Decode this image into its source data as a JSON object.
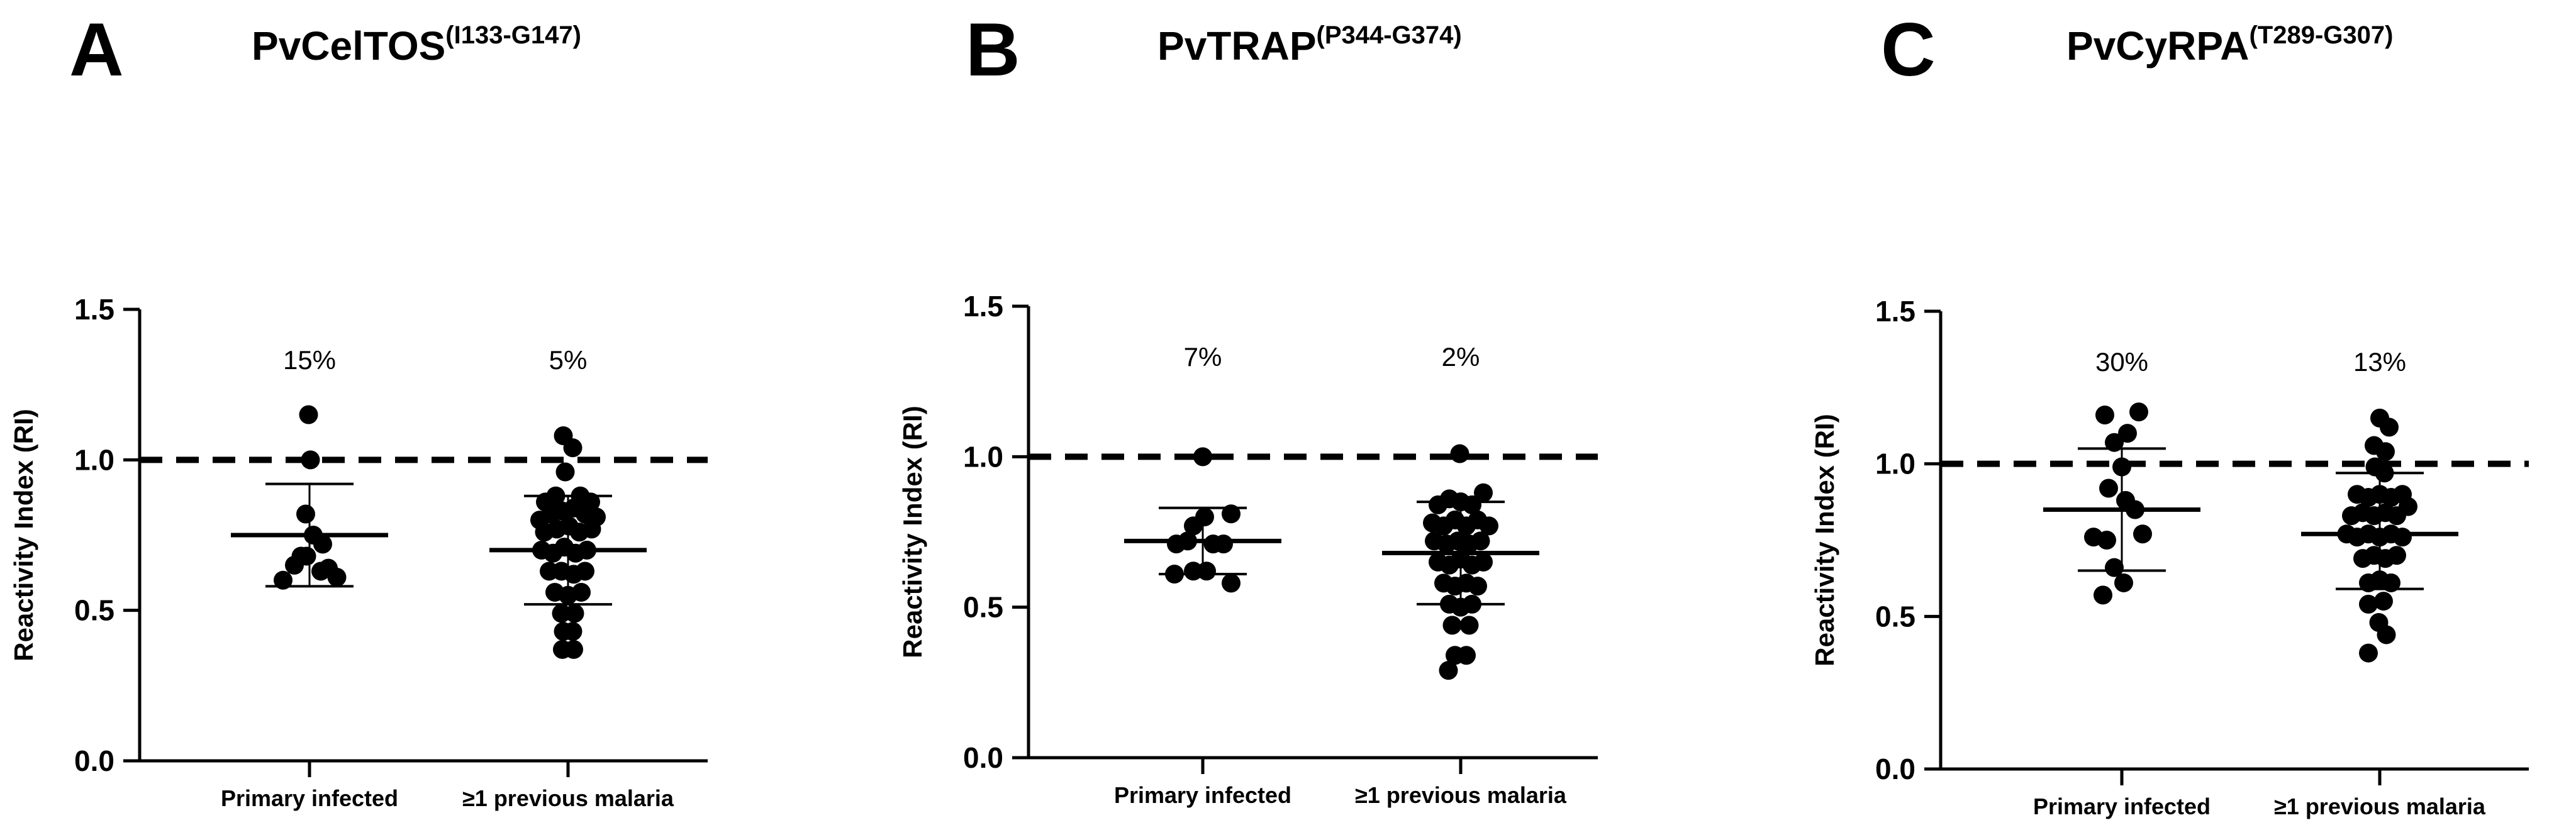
{
  "figure": {
    "panels": [
      {
        "letter": "A",
        "title": "PvCelTOS",
        "title_sup": "(I133-G147)"
      },
      {
        "letter": "B",
        "title": "PvTRAP",
        "title_sup": "(P344-G374)"
      },
      {
        "letter": "C",
        "title": "PvCyRPA",
        "title_sup": "(T289-G307)"
      }
    ]
  },
  "chart_data": [
    {
      "type": "scatter",
      "title": "PvCelTOS(I133-G147)",
      "ylabel": "Reactivity Index (RI)",
      "ylim": [
        0,
        1.5
      ],
      "yticks": [
        0.0,
        0.5,
        1.0,
        1.5
      ],
      "ytick_labels": [
        "0.0",
        "0.5",
        "1.0",
        "1.5"
      ],
      "cutoff": 1.0,
      "categories": [
        "Primary infected",
        "≥1 previous malaria"
      ],
      "percent_labels": [
        "15%",
        "5%"
      ],
      "groups": [
        {
          "name": "Primary infected",
          "mean": 0.75,
          "sd_low": 0.58,
          "sd_high": 0.92,
          "points": [
            {
              "x": -0.28,
              "y": 0.6
            },
            {
              "x": -0.16,
              "y": 0.65
            },
            {
              "x": -0.03,
              "y": 0.68
            },
            {
              "x": 0.12,
              "y": 0.63
            },
            {
              "x": 0.29,
              "y": 0.61
            },
            {
              "x": 0.04,
              "y": 0.75
            },
            {
              "x": 0.14,
              "y": 0.72
            },
            {
              "x": -0.04,
              "y": 0.82
            },
            {
              "x": 0.01,
              "y": 1.0
            },
            {
              "x": -0.01,
              "y": 1.15
            },
            {
              "x": -0.09,
              "y": 0.68
            },
            {
              "x": 0.2,
              "y": 0.64
            }
          ]
        },
        {
          "name": "≥1 previous malaria",
          "mean": 0.7,
          "sd_low": 0.52,
          "sd_high": 0.88,
          "points": [
            {
              "x": -0.05,
              "y": 1.08
            },
            {
              "x": 0.05,
              "y": 1.04
            },
            {
              "x": -0.03,
              "y": 0.96
            },
            {
              "x": -0.13,
              "y": 0.88
            },
            {
              "x": 0.13,
              "y": 0.88
            },
            {
              "x": -0.24,
              "y": 0.86
            },
            {
              "x": 0.24,
              "y": 0.86
            },
            {
              "x": -0.3,
              "y": 0.8
            },
            {
              "x": -0.18,
              "y": 0.82
            },
            {
              "x": -0.06,
              "y": 0.83
            },
            {
              "x": 0.06,
              "y": 0.84
            },
            {
              "x": 0.18,
              "y": 0.82
            },
            {
              "x": 0.3,
              "y": 0.81
            },
            {
              "x": -0.25,
              "y": 0.76
            },
            {
              "x": -0.12,
              "y": 0.77
            },
            {
              "x": 0.01,
              "y": 0.78
            },
            {
              "x": 0.12,
              "y": 0.76
            },
            {
              "x": 0.25,
              "y": 0.77
            },
            {
              "x": -0.28,
              "y": 0.7
            },
            {
              "x": -0.16,
              "y": 0.69
            },
            {
              "x": -0.04,
              "y": 0.71
            },
            {
              "x": 0.08,
              "y": 0.69
            },
            {
              "x": 0.2,
              "y": 0.7
            },
            {
              "x": -0.2,
              "y": 0.63
            },
            {
              "x": -0.07,
              "y": 0.63
            },
            {
              "x": 0.06,
              "y": 0.62
            },
            {
              "x": 0.18,
              "y": 0.63
            },
            {
              "x": -0.14,
              "y": 0.56
            },
            {
              "x": 0.0,
              "y": 0.55
            },
            {
              "x": 0.14,
              "y": 0.56
            },
            {
              "x": -0.07,
              "y": 0.49
            },
            {
              "x": 0.07,
              "y": 0.49
            },
            {
              "x": -0.05,
              "y": 0.43
            },
            {
              "x": 0.05,
              "y": 0.43
            },
            {
              "x": -0.06,
              "y": 0.37
            },
            {
              "x": 0.06,
              "y": 0.37
            }
          ]
        }
      ]
    },
    {
      "type": "scatter",
      "title": "PvTRAP(P344-G374)",
      "ylabel": "Reactivity Index (RI)",
      "ylim": [
        0,
        1.5
      ],
      "yticks": [
        0.0,
        0.5,
        1.0,
        1.5
      ],
      "ytick_labels": [
        "0.0",
        "0.5",
        "1.0",
        "1.5"
      ],
      "cutoff": 1.0,
      "categories": [
        "Primary infected",
        "≥1 previous malaria"
      ],
      "percent_labels": [
        "7%",
        "2%"
      ],
      "groups": [
        {
          "name": "Primary infected",
          "mean": 0.72,
          "sd_low": 0.61,
          "sd_high": 0.83,
          "points": [
            {
              "x": 0.0,
              "y": 1.0
            },
            {
              "x": -0.1,
              "y": 0.77
            },
            {
              "x": 0.02,
              "y": 0.8
            },
            {
              "x": 0.3,
              "y": 0.81
            },
            {
              "x": -0.28,
              "y": 0.71
            },
            {
              "x": -0.16,
              "y": 0.72
            },
            {
              "x": 0.11,
              "y": 0.71
            },
            {
              "x": 0.22,
              "y": 0.71
            },
            {
              "x": -0.3,
              "y": 0.61
            },
            {
              "x": -0.1,
              "y": 0.62
            },
            {
              "x": 0.04,
              "y": 0.62
            },
            {
              "x": 0.3,
              "y": 0.58
            }
          ]
        },
        {
          "name": "≥1 previous malaria",
          "mean": 0.68,
          "sd_low": 0.51,
          "sd_high": 0.85,
          "points": [
            {
              "x": -0.01,
              "y": 1.01
            },
            {
              "x": -0.24,
              "y": 0.84
            },
            {
              "x": -0.12,
              "y": 0.86
            },
            {
              "x": 0.0,
              "y": 0.85
            },
            {
              "x": 0.12,
              "y": 0.84
            },
            {
              "x": 0.24,
              "y": 0.88
            },
            {
              "x": -0.3,
              "y": 0.78
            },
            {
              "x": -0.18,
              "y": 0.77
            },
            {
              "x": -0.06,
              "y": 0.79
            },
            {
              "x": 0.06,
              "y": 0.77
            },
            {
              "x": 0.18,
              "y": 0.79
            },
            {
              "x": 0.3,
              "y": 0.77
            },
            {
              "x": -0.28,
              "y": 0.72
            },
            {
              "x": -0.15,
              "y": 0.71
            },
            {
              "x": -0.03,
              "y": 0.72
            },
            {
              "x": 0.09,
              "y": 0.71
            },
            {
              "x": 0.21,
              "y": 0.72
            },
            {
              "x": -0.24,
              "y": 0.65
            },
            {
              "x": -0.12,
              "y": 0.64
            },
            {
              "x": 0.0,
              "y": 0.66
            },
            {
              "x": 0.12,
              "y": 0.64
            },
            {
              "x": 0.24,
              "y": 0.65
            },
            {
              "x": -0.18,
              "y": 0.58
            },
            {
              "x": -0.06,
              "y": 0.57
            },
            {
              "x": 0.06,
              "y": 0.58
            },
            {
              "x": 0.18,
              "y": 0.57
            },
            {
              "x": -0.12,
              "y": 0.51
            },
            {
              "x": 0.0,
              "y": 0.5
            },
            {
              "x": 0.12,
              "y": 0.51
            },
            {
              "x": -0.09,
              "y": 0.44
            },
            {
              "x": 0.09,
              "y": 0.44
            },
            {
              "x": -0.06,
              "y": 0.34
            },
            {
              "x": 0.06,
              "y": 0.34
            },
            {
              "x": -0.13,
              "y": 0.29
            }
          ]
        }
      ]
    },
    {
      "type": "scatter",
      "title": "PvCyRPA(T289-G307)",
      "ylabel": "Reactivity Index (RI)",
      "ylim": [
        0,
        1.5
      ],
      "yticks": [
        0.0,
        0.5,
        1.0,
        1.5
      ],
      "ytick_labels": [
        "0.0",
        "0.5",
        "1.0",
        "1.5"
      ],
      "cutoff": 1.0,
      "categories": [
        "Primary infected",
        "≥1 previous malaria"
      ],
      "percent_labels": [
        "30%",
        "13%"
      ],
      "groups": [
        {
          "name": "Primary infected",
          "mean": 0.85,
          "sd_low": 0.65,
          "sd_high": 1.05,
          "points": [
            {
              "x": -0.18,
              "y": 1.16
            },
            {
              "x": 0.18,
              "y": 1.17
            },
            {
              "x": -0.08,
              "y": 1.07
            },
            {
              "x": 0.06,
              "y": 1.1
            },
            {
              "x": 0.0,
              "y": 0.99
            },
            {
              "x": -0.14,
              "y": 0.92
            },
            {
              "x": 0.04,
              "y": 0.88
            },
            {
              "x": 0.14,
              "y": 0.85
            },
            {
              "x": -0.3,
              "y": 0.76
            },
            {
              "x": -0.16,
              "y": 0.75
            },
            {
              "x": 0.22,
              "y": 0.77
            },
            {
              "x": -0.08,
              "y": 0.66
            },
            {
              "x": -0.2,
              "y": 0.57
            },
            {
              "x": 0.02,
              "y": 0.61
            }
          ]
        },
        {
          "name": "≥1 previous malaria",
          "mean": 0.77,
          "sd_low": 0.59,
          "sd_high": 0.97,
          "points": [
            {
              "x": 0.0,
              "y": 1.15
            },
            {
              "x": 0.1,
              "y": 1.12
            },
            {
              "x": -0.06,
              "y": 1.06
            },
            {
              "x": 0.06,
              "y": 1.04
            },
            {
              "x": -0.05,
              "y": 0.99
            },
            {
              "x": 0.05,
              "y": 0.97
            },
            {
              "x": -0.24,
              "y": 0.9
            },
            {
              "x": -0.12,
              "y": 0.89
            },
            {
              "x": 0.0,
              "y": 0.9
            },
            {
              "x": 0.12,
              "y": 0.89
            },
            {
              "x": 0.24,
              "y": 0.9
            },
            {
              "x": -0.3,
              "y": 0.83
            },
            {
              "x": -0.18,
              "y": 0.84
            },
            {
              "x": -0.06,
              "y": 0.83
            },
            {
              "x": 0.06,
              "y": 0.84
            },
            {
              "x": 0.18,
              "y": 0.83
            },
            {
              "x": 0.3,
              "y": 0.86
            },
            {
              "x": -0.35,
              "y": 0.77
            },
            {
              "x": -0.24,
              "y": 0.76
            },
            {
              "x": -0.12,
              "y": 0.77
            },
            {
              "x": 0.0,
              "y": 0.76
            },
            {
              "x": 0.12,
              "y": 0.77
            },
            {
              "x": 0.24,
              "y": 0.76
            },
            {
              "x": -0.18,
              "y": 0.69
            },
            {
              "x": -0.06,
              "y": 0.7
            },
            {
              "x": 0.06,
              "y": 0.69
            },
            {
              "x": 0.18,
              "y": 0.7
            },
            {
              "x": -0.12,
              "y": 0.61
            },
            {
              "x": 0.0,
              "y": 0.62
            },
            {
              "x": 0.12,
              "y": 0.61
            },
            {
              "x": -0.12,
              "y": 0.54
            },
            {
              "x": 0.04,
              "y": 0.55
            },
            {
              "x": -0.01,
              "y": 0.48
            },
            {
              "x": 0.07,
              "y": 0.44
            },
            {
              "x": -0.12,
              "y": 0.38
            }
          ]
        }
      ]
    }
  ]
}
